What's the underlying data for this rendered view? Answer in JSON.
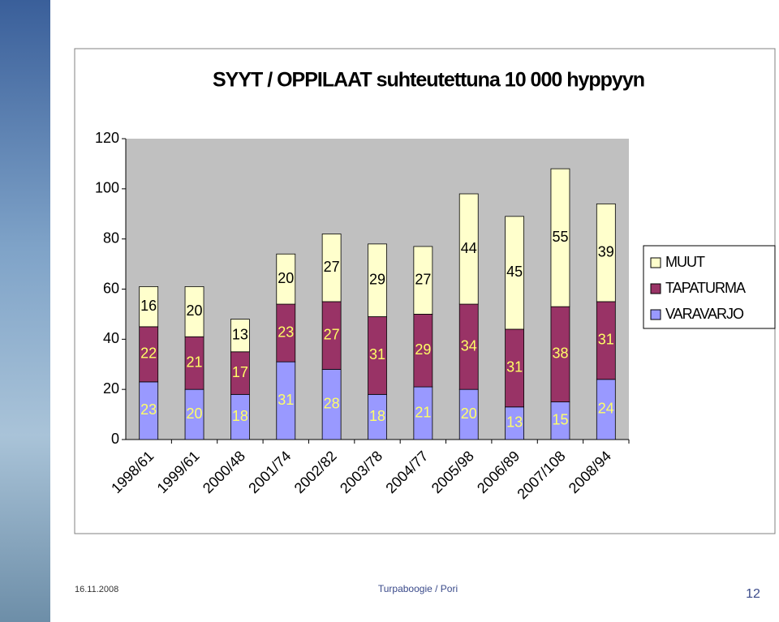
{
  "chart_data": {
    "type": "stacked-bar",
    "title": "SYYT / OPPILAAT suhteutettuna 10 000 hyppyyn",
    "categories": [
      "1998/61",
      "1999/61",
      "2000/48",
      "2001/74",
      "2002/82",
      "2003/78",
      "2004/77",
      "2005/98",
      "2006/89",
      "2007/108",
      "2008/94"
    ],
    "series": [
      {
        "name": "VARAVARJO",
        "color": "#9999ff",
        "label_color": "#ffff66",
        "values": [
          23,
          20,
          18,
          31,
          28,
          18,
          21,
          20,
          13,
          15,
          24
        ]
      },
      {
        "name": "TAPATURMA",
        "color": "#993366",
        "label_color": "#ffff66",
        "values": [
          22,
          21,
          17,
          23,
          27,
          31,
          29,
          34,
          31,
          38,
          31
        ]
      },
      {
        "name": "MUUT",
        "color": "#ffffcc",
        "label_color": "#000000",
        "values": [
          16,
          20,
          13,
          20,
          27,
          29,
          27,
          44,
          45,
          55,
          39
        ]
      }
    ],
    "ylim": [
      0,
      120
    ],
    "yticks": [
      0,
      20,
      40,
      60,
      80,
      100,
      120
    ],
    "grid": false,
    "legend": "right"
  },
  "footer": {
    "date": "16.11.2008",
    "center": "Turpaboogie / Pori",
    "page": "12"
  }
}
